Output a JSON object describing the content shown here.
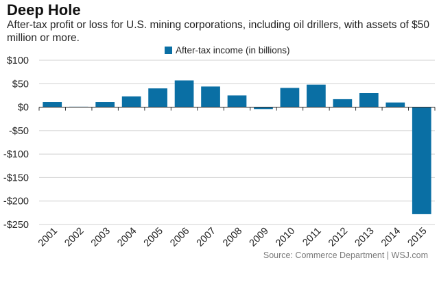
{
  "header": {
    "title": "Deep Hole",
    "subtitle": "After-tax profit or loss for U.S. mining corporations, including oil drillers, with assets of $50 million or more."
  },
  "footer": {
    "source": "Source: Commerce Department  |  WSJ.com"
  },
  "colors": {
    "bar": "#0a6fa4",
    "grid": "#d0d0d0",
    "axis": "#333333"
  },
  "chart_data": {
    "type": "bar",
    "title": "Deep Hole",
    "xlabel": "",
    "ylabel": "",
    "legend": {
      "position": "top-center",
      "entries": [
        "After-tax income (in billions)"
      ]
    },
    "grid": true,
    "ylim": [
      -250,
      100
    ],
    "yticks": [
      100,
      50,
      0,
      -50,
      -100,
      -150,
      -200,
      -250
    ],
    "ytick_labels": [
      "$100",
      "$50",
      "$0",
      "-$50",
      "-$100",
      "-$150",
      "-$200",
      "-$250"
    ],
    "categories": [
      "2001",
      "2002",
      "2003",
      "2004",
      "2005",
      "2006",
      "2007",
      "2008",
      "2009",
      "2010",
      "2011",
      "2012",
      "2013",
      "2014",
      "2015"
    ],
    "series": [
      {
        "name": "After-tax income (in billions)",
        "values": [
          11,
          1,
          11,
          23,
          40,
          57,
          44,
          25,
          -4,
          41,
          48,
          17,
          30,
          10,
          -228
        ]
      }
    ]
  }
}
